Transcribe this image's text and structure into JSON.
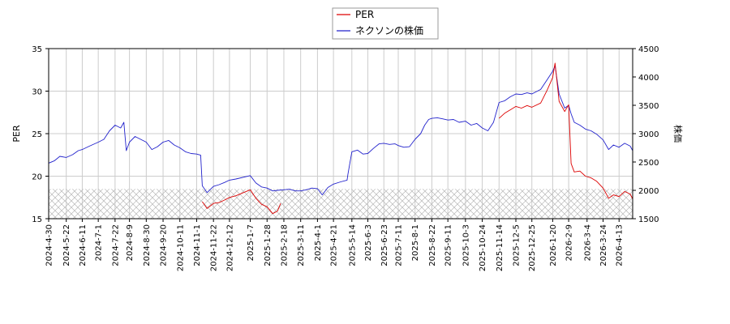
{
  "chart_data": {
    "type": "line",
    "title": "",
    "legend": {
      "placement": "top-center",
      "entries": [
        {
          "name": "PER",
          "color": "#dd0000"
        },
        {
          "name": "ネクソンの株価",
          "color": "#2222cc"
        }
      ]
    },
    "ylabel_left": "PER",
    "ylabel_right": "株価",
    "ylim_left": [
      15,
      35
    ],
    "ylim_right": [
      1500,
      4500
    ],
    "yticks_left": [
      "15",
      "20",
      "25",
      "30",
      "35"
    ],
    "yticks_right": [
      "1500",
      "2000",
      "2500",
      "3000",
      "3500",
      "4000",
      "4500"
    ],
    "xlim": [
      "2024-04-30",
      "2026-04-30"
    ],
    "xtick_labels": [
      "2024-4-30",
      "2024-5-22",
      "2024-6-11",
      "2024-7-1",
      "2024-7-22",
      "2024-8-9",
      "2024-8-30",
      "2024-9-20",
      "2024-10-11",
      "2024-11-1",
      "2024-11-22",
      "2024-12-12",
      "2025-1-7",
      "2025-1-28",
      "2025-2-18",
      "2025-3-11",
      "2025-4-1",
      "2025-4-21",
      "2025-5-14",
      "2025-6-3",
      "2025-6-23",
      "2025-7-11",
      "2025-8-1",
      "2025-8-22",
      "2025-9-11",
      "2025-10-3",
      "2025-10-24",
      "2025-11-14",
      "2025-12-5",
      "2025-12-25",
      "2026-1-20",
      "2026-2-9",
      "2026-3-4",
      "2026-3-24",
      "2026-4-13"
    ],
    "grid": true,
    "hatched_band_left": [
      15,
      18.5
    ],
    "series": [
      {
        "name": "ネクソンの株価",
        "axis": "right",
        "color": "#2222cc",
        "points": [
          [
            "2024-04-30",
            2480
          ],
          [
            "2024-05-07",
            2520
          ],
          [
            "2024-05-14",
            2600
          ],
          [
            "2024-05-22",
            2580
          ],
          [
            "2024-05-30",
            2630
          ],
          [
            "2024-06-06",
            2700
          ],
          [
            "2024-06-11",
            2720
          ],
          [
            "2024-06-20",
            2780
          ],
          [
            "2024-07-01",
            2850
          ],
          [
            "2024-07-08",
            2900
          ],
          [
            "2024-07-15",
            3050
          ],
          [
            "2024-07-22",
            3150
          ],
          [
            "2024-07-29",
            3100
          ],
          [
            "2024-08-02",
            3200
          ],
          [
            "2024-08-05",
            2700
          ],
          [
            "2024-08-09",
            2850
          ],
          [
            "2024-08-16",
            2950
          ],
          [
            "2024-08-23",
            2900
          ],
          [
            "2024-08-30",
            2850
          ],
          [
            "2024-09-06",
            2720
          ],
          [
            "2024-09-13",
            2770
          ],
          [
            "2024-09-20",
            2850
          ],
          [
            "2024-09-27",
            2880
          ],
          [
            "2024-10-04",
            2800
          ],
          [
            "2024-10-11",
            2750
          ],
          [
            "2024-10-18",
            2680
          ],
          [
            "2024-10-25",
            2650
          ],
          [
            "2024-11-01",
            2640
          ],
          [
            "2024-11-06",
            2620
          ],
          [
            "2024-11-08",
            2080
          ],
          [
            "2024-11-14",
            1960
          ],
          [
            "2024-11-22",
            2070
          ],
          [
            "2024-11-29",
            2100
          ],
          [
            "2024-12-06",
            2140
          ],
          [
            "2024-12-12",
            2180
          ],
          [
            "2024-12-20",
            2200
          ],
          [
            "2025-01-07",
            2260
          ],
          [
            "2025-01-14",
            2130
          ],
          [
            "2025-01-21",
            2060
          ],
          [
            "2025-01-28",
            2040
          ],
          [
            "2025-02-04",
            1990
          ],
          [
            "2025-02-10",
            2000
          ],
          [
            "2025-02-18",
            2010
          ],
          [
            "2025-02-25",
            2020
          ],
          [
            "2025-03-04",
            1990
          ],
          [
            "2025-03-11",
            1990
          ],
          [
            "2025-03-18",
            2010
          ],
          [
            "2025-03-25",
            2040
          ],
          [
            "2025-04-01",
            2030
          ],
          [
            "2025-04-07",
            1920
          ],
          [
            "2025-04-14",
            2050
          ],
          [
            "2025-04-21",
            2110
          ],
          [
            "2025-04-30",
            2150
          ],
          [
            "2025-05-08",
            2180
          ],
          [
            "2025-05-09",
            2280
          ],
          [
            "2025-05-14",
            2680
          ],
          [
            "2025-05-21",
            2710
          ],
          [
            "2025-05-28",
            2640
          ],
          [
            "2025-06-03",
            2650
          ],
          [
            "2025-06-10",
            2740
          ],
          [
            "2025-06-17",
            2820
          ],
          [
            "2025-06-23",
            2830
          ],
          [
            "2025-06-30",
            2810
          ],
          [
            "2025-07-07",
            2820
          ],
          [
            "2025-07-11",
            2790
          ],
          [
            "2025-07-18",
            2760
          ],
          [
            "2025-07-25",
            2770
          ],
          [
            "2025-08-01",
            2900
          ],
          [
            "2025-08-08",
            3000
          ],
          [
            "2025-08-13",
            3150
          ],
          [
            "2025-08-18",
            3250
          ],
          [
            "2025-08-22",
            3270
          ],
          [
            "2025-08-29",
            3280
          ],
          [
            "2025-09-05",
            3260
          ],
          [
            "2025-09-11",
            3240
          ],
          [
            "2025-09-18",
            3250
          ],
          [
            "2025-09-25",
            3200
          ],
          [
            "2025-10-03",
            3220
          ],
          [
            "2025-10-10",
            3150
          ],
          [
            "2025-10-17",
            3180
          ],
          [
            "2025-10-24",
            3100
          ],
          [
            "2025-10-31",
            3050
          ],
          [
            "2025-11-07",
            3200
          ],
          [
            "2025-11-14",
            3550
          ],
          [
            "2025-11-21",
            3580
          ],
          [
            "2025-11-28",
            3650
          ],
          [
            "2025-12-05",
            3700
          ],
          [
            "2025-12-12",
            3690
          ],
          [
            "2025-12-19",
            3720
          ],
          [
            "2025-12-25",
            3700
          ],
          [
            "2026-01-05",
            3780
          ],
          [
            "2026-01-13",
            3950
          ],
          [
            "2026-01-20",
            4100
          ],
          [
            "2026-01-23",
            4200
          ],
          [
            "2026-01-28",
            3700
          ],
          [
            "2026-02-04",
            3450
          ],
          [
            "2026-02-09",
            3500
          ],
          [
            "2026-02-12",
            3350
          ],
          [
            "2026-02-16",
            3200
          ],
          [
            "2026-02-23",
            3150
          ],
          [
            "2026-03-02",
            3080
          ],
          [
            "2026-03-09",
            3050
          ],
          [
            "2026-03-16",
            2990
          ],
          [
            "2026-03-24",
            2890
          ],
          [
            "2026-03-31",
            2720
          ],
          [
            "2026-04-06",
            2800
          ],
          [
            "2026-04-13",
            2760
          ],
          [
            "2026-04-20",
            2830
          ],
          [
            "2026-04-27",
            2780
          ],
          [
            "2026-04-30",
            2700
          ]
        ]
      },
      {
        "name": "PER",
        "axis": "left",
        "color": "#dd0000",
        "points": [
          [
            "2024-11-08",
            17.0
          ],
          [
            "2024-11-14",
            16.2
          ],
          [
            "2024-11-22",
            16.8
          ],
          [
            "2024-11-29",
            16.9
          ],
          [
            "2024-12-06",
            17.2
          ],
          [
            "2024-12-12",
            17.5
          ],
          [
            "2024-12-20",
            17.7
          ],
          [
            "2025-01-07",
            18.4
          ],
          [
            "2025-01-14",
            17.4
          ],
          [
            "2025-01-21",
            16.7
          ],
          [
            "2025-01-28",
            16.4
          ],
          [
            "2025-02-04",
            15.6
          ],
          [
            "2025-02-10",
            15.9
          ],
          [
            "2025-02-14",
            16.8
          ],
          [
            "2025-02-16",
            null
          ],
          [
            "2025-11-14",
            26.8
          ],
          [
            "2025-11-21",
            27.4
          ],
          [
            "2025-11-28",
            27.8
          ],
          [
            "2025-12-05",
            28.2
          ],
          [
            "2025-12-12",
            28.0
          ],
          [
            "2025-12-19",
            28.3
          ],
          [
            "2025-12-25",
            28.1
          ],
          [
            "2026-01-05",
            28.6
          ],
          [
            "2026-01-13",
            30.1
          ],
          [
            "2026-01-20",
            31.6
          ],
          [
            "2026-01-23",
            33.3
          ],
          [
            "2026-01-28",
            28.8
          ],
          [
            "2026-02-04",
            27.6
          ],
          [
            "2026-02-09",
            28.4
          ],
          [
            "2026-02-12",
            21.5
          ],
          [
            "2026-02-16",
            20.5
          ],
          [
            "2026-02-23",
            20.6
          ],
          [
            "2026-03-02",
            20.0
          ],
          [
            "2026-03-09",
            19.8
          ],
          [
            "2026-03-16",
            19.4
          ],
          [
            "2026-03-24",
            18.6
          ],
          [
            "2026-03-31",
            17.4
          ],
          [
            "2026-04-06",
            17.8
          ],
          [
            "2026-04-13",
            17.6
          ],
          [
            "2026-04-20",
            18.2
          ],
          [
            "2026-04-27",
            17.9
          ],
          [
            "2026-04-30",
            17.3
          ]
        ]
      }
    ]
  }
}
